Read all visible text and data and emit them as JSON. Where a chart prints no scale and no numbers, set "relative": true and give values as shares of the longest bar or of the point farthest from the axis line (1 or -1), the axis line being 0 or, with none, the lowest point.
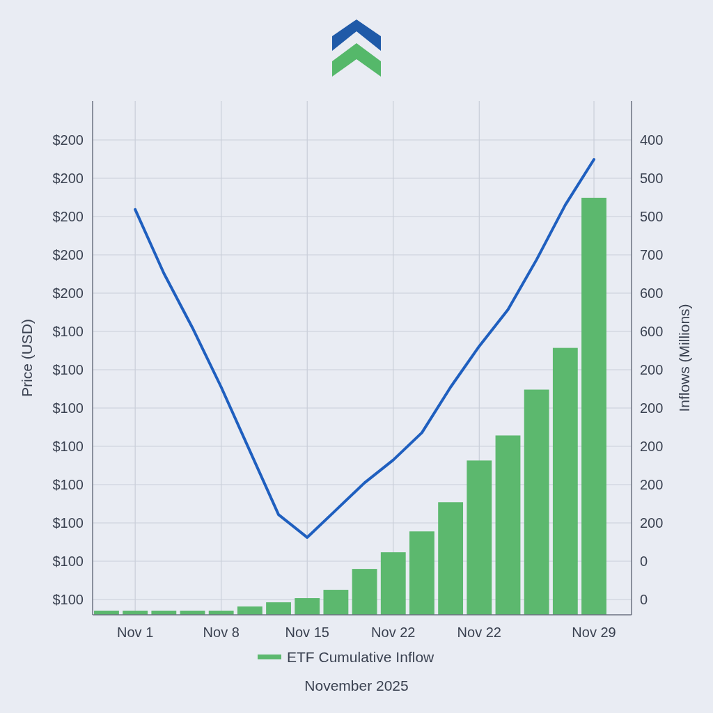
{
  "chart_data": {
    "type": "bar",
    "xlabel": "November 2025",
    "ylabel": "Price (USD)",
    "y2label": "Inflows (Millions)",
    "relative": true,
    "categories": [
      null,
      "Nov 1",
      null,
      null,
      "Nov 8",
      null,
      null,
      "Nov 15",
      null,
      null,
      "Nov 22",
      null,
      null,
      "Nov 22",
      null,
      null,
      null,
      "Nov 29"
    ],
    "annotations": [
      "$200",
      "$200",
      "$200",
      "$200",
      "$200",
      "$100",
      "$100",
      "$100",
      "$100",
      "$100",
      "$100",
      "$100",
      "$100",
      "400",
      "500",
      "500",
      "700",
      "600",
      "600",
      "200",
      "200",
      "200",
      "200",
      "200",
      "0",
      "0"
    ],
    "grid": true,
    "legend": "bottom",
    "series": [
      {
        "name": "ETF Cumulative Inflow",
        "color": "#5cb86e",
        "axis": "y2",
        "values": [
          0.01,
          0.01,
          0.01,
          0.01,
          0.01,
          0.02,
          0.03,
          0.04,
          0.06,
          0.11,
          0.15,
          0.2,
          0.27,
          0.37,
          0.43,
          0.54,
          0.64,
          1
        ]
      },
      {
        "type": "line",
        "color": "#1f5fbf",
        "values": [
          null,
          0.89,
          0.75,
          0.63,
          0.5,
          0.36,
          0.22,
          0.17,
          0.23,
          0.29,
          0.34,
          0.4,
          0.5,
          0.59,
          0.67,
          0.78,
          0.9,
          1
        ]
      }
    ]
  }
}
